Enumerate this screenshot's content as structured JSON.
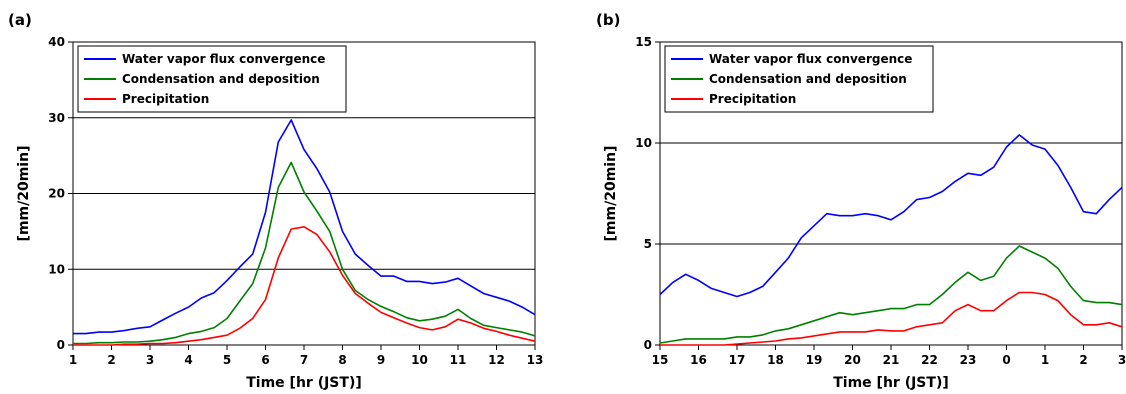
{
  "chart_data": [
    {
      "type": "line",
      "panel_label": "(a)",
      "xlabel": "Time [hr (JST)]",
      "ylabel": "[mm/20min]",
      "ylim": [
        0,
        40
      ],
      "yticks": [
        0,
        10,
        20,
        30,
        40
      ],
      "x_tick_labels": [
        "1",
        "2",
        "3",
        "4",
        "5",
        "6",
        "7",
        "8",
        "9",
        "10",
        "11",
        "12",
        "13"
      ],
      "grid": "horizontal",
      "legend_position": "top-left",
      "x": [
        1,
        1.333,
        1.667,
        2,
        2.333,
        2.667,
        3,
        3.333,
        3.667,
        4,
        4.333,
        4.667,
        5,
        5.333,
        5.667,
        6,
        6.333,
        6.667,
        7,
        7.333,
        7.667,
        8,
        8.333,
        8.667,
        9,
        9.333,
        9.667,
        10,
        10.333,
        10.667,
        11,
        11.333,
        11.667,
        12,
        12.333,
        12.667,
        13
      ],
      "series": [
        {
          "name": "Water vapor flux convergence",
          "color": "#0000ff",
          "values": [
            1.5,
            1.5,
            1.7,
            1.7,
            1.9,
            2.2,
            2.4,
            3.3,
            4.2,
            5.0,
            6.2,
            6.9,
            8.5,
            10.3,
            12.0,
            17.5,
            26.8,
            29.7,
            25.8,
            23.3,
            20.2,
            15.0,
            12.0,
            10.5,
            9.1,
            9.1,
            8.4,
            8.4,
            8.1,
            8.3,
            8.8,
            7.8,
            6.8,
            6.3,
            5.8,
            5.0,
            4.0
          ]
        },
        {
          "name": "Condensation and deposition",
          "color": "#008000",
          "values": [
            0.2,
            0.2,
            0.3,
            0.3,
            0.4,
            0.4,
            0.5,
            0.7,
            1.0,
            1.5,
            1.8,
            2.3,
            3.5,
            5.8,
            8.1,
            12.8,
            20.8,
            24.1,
            20.2,
            17.7,
            15.0,
            10.0,
            7.2,
            6.0,
            5.1,
            4.4,
            3.6,
            3.2,
            3.4,
            3.8,
            4.7,
            3.5,
            2.6,
            2.3,
            2.0,
            1.7,
            1.2
          ]
        },
        {
          "name": "Precipitation",
          "color": "#ff0000",
          "values": [
            0.0,
            0.0,
            0.0,
            0.0,
            0.1,
            0.1,
            0.2,
            0.2,
            0.3,
            0.5,
            0.7,
            1.0,
            1.3,
            2.2,
            3.5,
            6.0,
            11.5,
            15.3,
            15.6,
            14.6,
            12.3,
            9.2,
            6.8,
            5.5,
            4.3,
            3.6,
            2.9,
            2.3,
            2.0,
            2.4,
            3.4,
            2.9,
            2.2,
            1.8,
            1.3,
            0.9,
            0.5
          ]
        }
      ]
    },
    {
      "type": "line",
      "panel_label": "(b)",
      "xlabel": "Time [hr (JST)]",
      "ylabel": "[mm/20min]",
      "ylim": [
        0,
        15
      ],
      "yticks": [
        0,
        5,
        10,
        15
      ],
      "x_tick_labels": [
        "15",
        "16",
        "17",
        "18",
        "19",
        "20",
        "21",
        "22",
        "23",
        "0",
        "1",
        "2",
        "3"
      ],
      "grid": "horizontal",
      "legend_position": "top-left",
      "x": [
        15,
        15.333,
        15.667,
        16,
        16.333,
        16.667,
        17,
        17.333,
        17.667,
        18,
        18.333,
        18.667,
        19,
        19.333,
        19.667,
        20,
        20.333,
        20.667,
        21,
        21.333,
        21.667,
        22,
        22.333,
        22.667,
        23,
        23.333,
        23.667,
        24,
        24.333,
        24.667,
        25,
        25.333,
        25.667,
        26,
        26.333,
        26.667,
        27
      ],
      "series": [
        {
          "name": "Water vapor flux convergence",
          "color": "#0000ff",
          "values": [
            2.5,
            3.1,
            3.5,
            3.2,
            2.8,
            2.6,
            2.4,
            2.6,
            2.9,
            3.6,
            4.3,
            5.3,
            5.9,
            6.5,
            6.4,
            6.4,
            6.5,
            6.4,
            6.2,
            6.6,
            7.2,
            7.3,
            7.6,
            8.1,
            8.5,
            8.4,
            8.8,
            9.8,
            10.4,
            9.9,
            9.7,
            8.9,
            7.8,
            6.6,
            6.5,
            7.2,
            7.8
          ]
        },
        {
          "name": "Condensation and deposition",
          "color": "#008000",
          "values": [
            0.1,
            0.2,
            0.3,
            0.3,
            0.3,
            0.3,
            0.4,
            0.4,
            0.5,
            0.7,
            0.8,
            1.0,
            1.2,
            1.4,
            1.6,
            1.5,
            1.6,
            1.7,
            1.8,
            1.8,
            2.0,
            2.0,
            2.5,
            3.1,
            3.6,
            3.2,
            3.4,
            4.3,
            4.9,
            4.6,
            4.3,
            3.8,
            2.9,
            2.2,
            2.1,
            2.1,
            2.0
          ]
        },
        {
          "name": "Precipitation",
          "color": "#ff0000",
          "values": [
            0.0,
            0.0,
            0.0,
            0.0,
            0.0,
            0.0,
            0.05,
            0.1,
            0.15,
            0.2,
            0.3,
            0.35,
            0.45,
            0.55,
            0.65,
            0.65,
            0.65,
            0.75,
            0.7,
            0.7,
            0.9,
            1.0,
            1.1,
            1.7,
            2.0,
            1.7,
            1.7,
            2.2,
            2.6,
            2.6,
            2.5,
            2.2,
            1.5,
            1.0,
            1.0,
            1.1,
            0.9
          ]
        }
      ]
    }
  ]
}
